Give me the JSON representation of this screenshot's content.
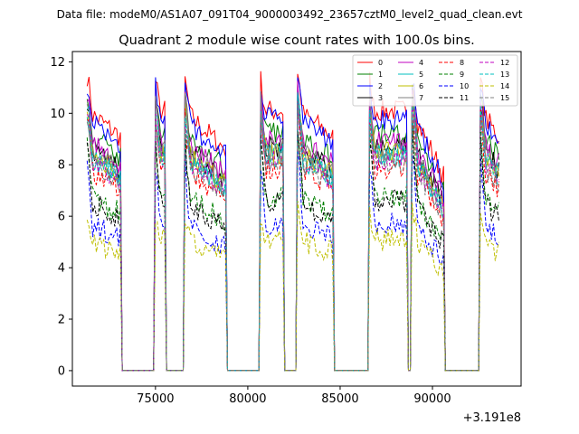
{
  "chart_data": {
    "type": "line",
    "suptitle": "Data file: modeM0/AS1A07_091T04_9000003492_23657cztM0_level2_quad_clean.evt",
    "title": "Quadrant 2 module wise count rates with 100.0s bins.",
    "xlabel": "",
    "ylabel": "",
    "x_offset_label": "+3.191e8",
    "xlim": [
      70500,
      94800
    ],
    "ylim": [
      -0.6,
      12.4
    ],
    "xticks": [
      75000,
      80000,
      85000,
      90000
    ],
    "xtick_labels": [
      "75000",
      "80000",
      "85000",
      "90000"
    ],
    "yticks": [
      0,
      2,
      4,
      6,
      8,
      10,
      12
    ],
    "ytick_labels": [
      "0",
      "2",
      "4",
      "6",
      "8",
      "10",
      "12"
    ],
    "legend_position": "top-right",
    "segments": [
      {
        "start": 71300,
        "end": 73100,
        "drop": 0.1
      },
      {
        "start": 74950,
        "end": 75550,
        "drop": 0.0
      },
      {
        "start": 76550,
        "end": 78800,
        "drop": 0.15
      },
      {
        "start": 80650,
        "end": 81950,
        "drop": 0.0
      },
      {
        "start": 82700,
        "end": 84600,
        "drop": 0.1
      },
      {
        "start": 86550,
        "end": 88600,
        "drop": 0.0
      },
      {
        "start": 88900,
        "end": 90600,
        "drop": 0.25
      },
      {
        "start": 92550,
        "end": 93600,
        "drop": 0.1
      }
    ],
    "series": [
      {
        "name": "0",
        "color": "#ff0000",
        "dash": "",
        "level": 10.1,
        "spike": 11.5
      },
      {
        "name": "1",
        "color": "#008000",
        "dash": "",
        "level": 9.2,
        "spike": 11.0
      },
      {
        "name": "2",
        "color": "#0000ff",
        "dash": "",
        "level": 9.8,
        "spike": 11.2
      },
      {
        "name": "3",
        "color": "#000000",
        "dash": "",
        "level": 8.7,
        "spike": 10.6
      },
      {
        "name": "4",
        "color": "#c000c0",
        "dash": "",
        "level": 8.9,
        "spike": 10.9
      },
      {
        "name": "5",
        "color": "#00bfbf",
        "dash": "",
        "level": 8.3,
        "spike": 10.3
      },
      {
        "name": "6",
        "color": "#bfbf00",
        "dash": "",
        "level": 8.5,
        "spike": 10.5
      },
      {
        "name": "7",
        "color": "#808080",
        "dash": "",
        "level": 8.6,
        "spike": 10.8
      },
      {
        "name": "8",
        "color": "#ff0000",
        "dash": "4,2",
        "level": 7.9,
        "spike": 10.2
      },
      {
        "name": "9",
        "color": "#008000",
        "dash": "4,2",
        "level": 6.8,
        "spike": 9.5
      },
      {
        "name": "10",
        "color": "#0000ff",
        "dash": "4,2",
        "level": 5.7,
        "spike": 8.6
      },
      {
        "name": "11",
        "color": "#000000",
        "dash": "4,2",
        "level": 6.6,
        "spike": 9.3
      },
      {
        "name": "12",
        "color": "#c000c0",
        "dash": "4,2",
        "level": 8.2,
        "spike": 10.4
      },
      {
        "name": "13",
        "color": "#00bfbf",
        "dash": "4,2",
        "level": 8.4,
        "spike": 10.6
      },
      {
        "name": "14",
        "color": "#bfbf00",
        "dash": "4,2",
        "level": 5.1,
        "spike": 6.3
      },
      {
        "name": "15",
        "color": "#808080",
        "dash": "4,2",
        "level": 8.1,
        "spike": 10.1
      }
    ]
  }
}
